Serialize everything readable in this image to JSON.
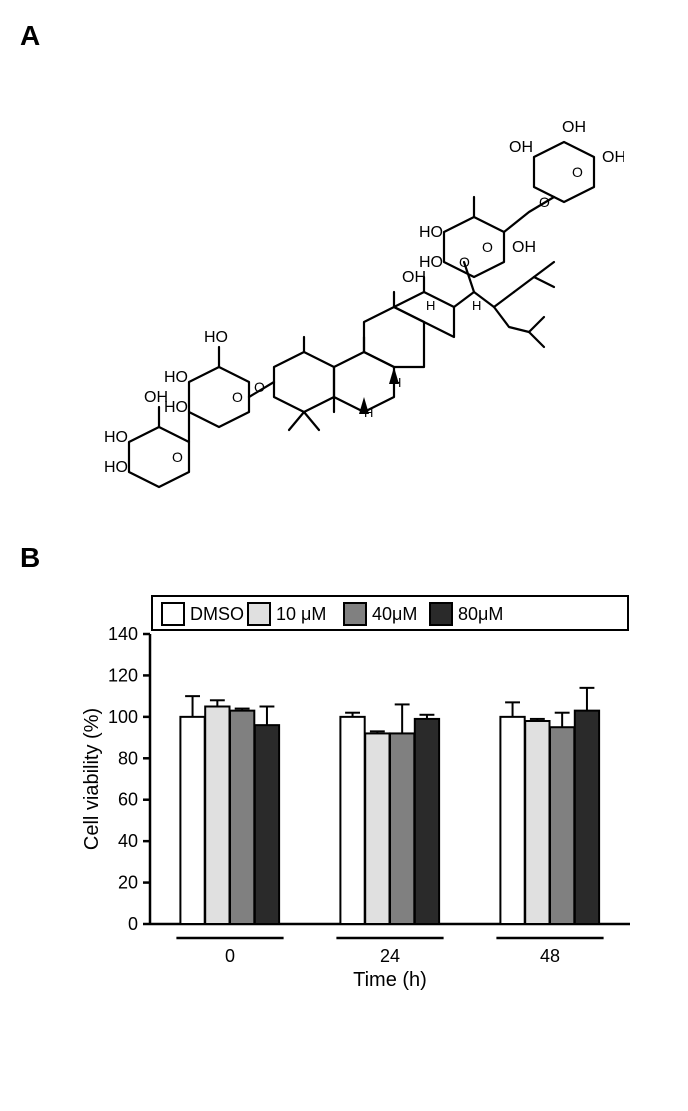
{
  "panelA": {
    "label": "A",
    "label_fontsize": 28,
    "structure_description": "Chemical structure of a ginsenoside saponin (triterpene glycoside) with multiple sugar units (glucose rings with HO and OH groups) attached via O-linkages to a steroid core bearing methyl groups, H stereo markers, and an OH."
  },
  "panelB": {
    "label": "B",
    "label_fontsize": 28,
    "chart": {
      "type": "grouped-bar",
      "ylabel": "Cell viability (%)",
      "xlabel": "Time (h)",
      "label_fontsize": 20,
      "tick_fontsize": 18,
      "legend_fontsize": 18,
      "ylim": [
        0,
        140
      ],
      "yticks": [
        0,
        20,
        40,
        60,
        80,
        100,
        120,
        140
      ],
      "groups": [
        "0",
        "24",
        "48"
      ],
      "series": [
        {
          "key": "DMSO",
          "label": "DMSO",
          "color": "#ffffff"
        },
        {
          "key": "c10",
          "label": "10 μM",
          "color": "#e0e0e0"
        },
        {
          "key": "c40",
          "label": "40μM",
          "color": "#808080"
        },
        {
          "key": "c80",
          "label": "80μM",
          "color": "#2a2a2a"
        }
      ],
      "values": {
        "0": {
          "DMSO": 100,
          "c10": 105,
          "c40": 103,
          "c80": 96
        },
        "24": {
          "DMSO": 100,
          "c10": 92,
          "c40": 92,
          "c80": 99
        },
        "48": {
          "DMSO": 100,
          "c10": 98,
          "c40": 95,
          "c80": 103
        }
      },
      "errors": {
        "0": {
          "DMSO": 10,
          "c10": 3,
          "c40": 1,
          "c80": 9
        },
        "24": {
          "DMSO": 2,
          "c10": 1,
          "c40": 14,
          "c80": 2
        },
        "48": {
          "DMSO": 7,
          "c10": 1,
          "c40": 7,
          "c80": 11
        }
      },
      "bar_width": 0.8,
      "stroke_color": "#000000",
      "stroke_width": 2,
      "background_color": "#ffffff",
      "axis_color": "#000000",
      "axis_width": 2.5
    }
  }
}
